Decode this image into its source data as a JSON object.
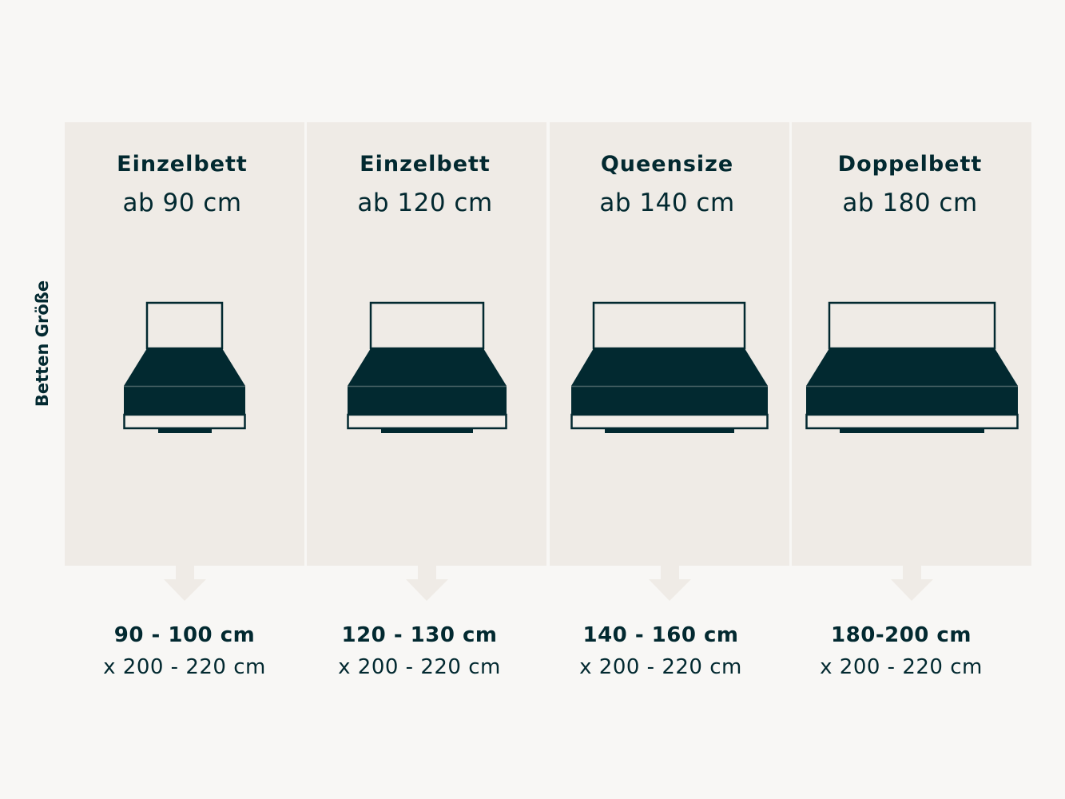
{
  "side_label": "Betten Größe",
  "colors": {
    "dark": "#022930",
    "panel": "#efebe6",
    "background": "#f8f7f5",
    "frame_fill": "#f2eee9"
  },
  "columns": [
    {
      "title": "Einzelbett",
      "subtitle": "ab 90 cm",
      "size_width": "90 - 100 cm",
      "size_length": "x 200 - 220 cm"
    },
    {
      "title": "Einzelbett",
      "subtitle": "ab 120 cm",
      "size_width": "120 - 130 cm",
      "size_length": "x 200 - 220 cm"
    },
    {
      "title": "Queensize",
      "subtitle": "ab 140 cm",
      "size_width": "140 - 160 cm",
      "size_length": "x 200 - 220 cm"
    },
    {
      "title": "Doppelbett",
      "subtitle": "ab 180 cm",
      "size_width": "180-200 cm",
      "size_length": "x 200 - 220 cm"
    }
  ]
}
